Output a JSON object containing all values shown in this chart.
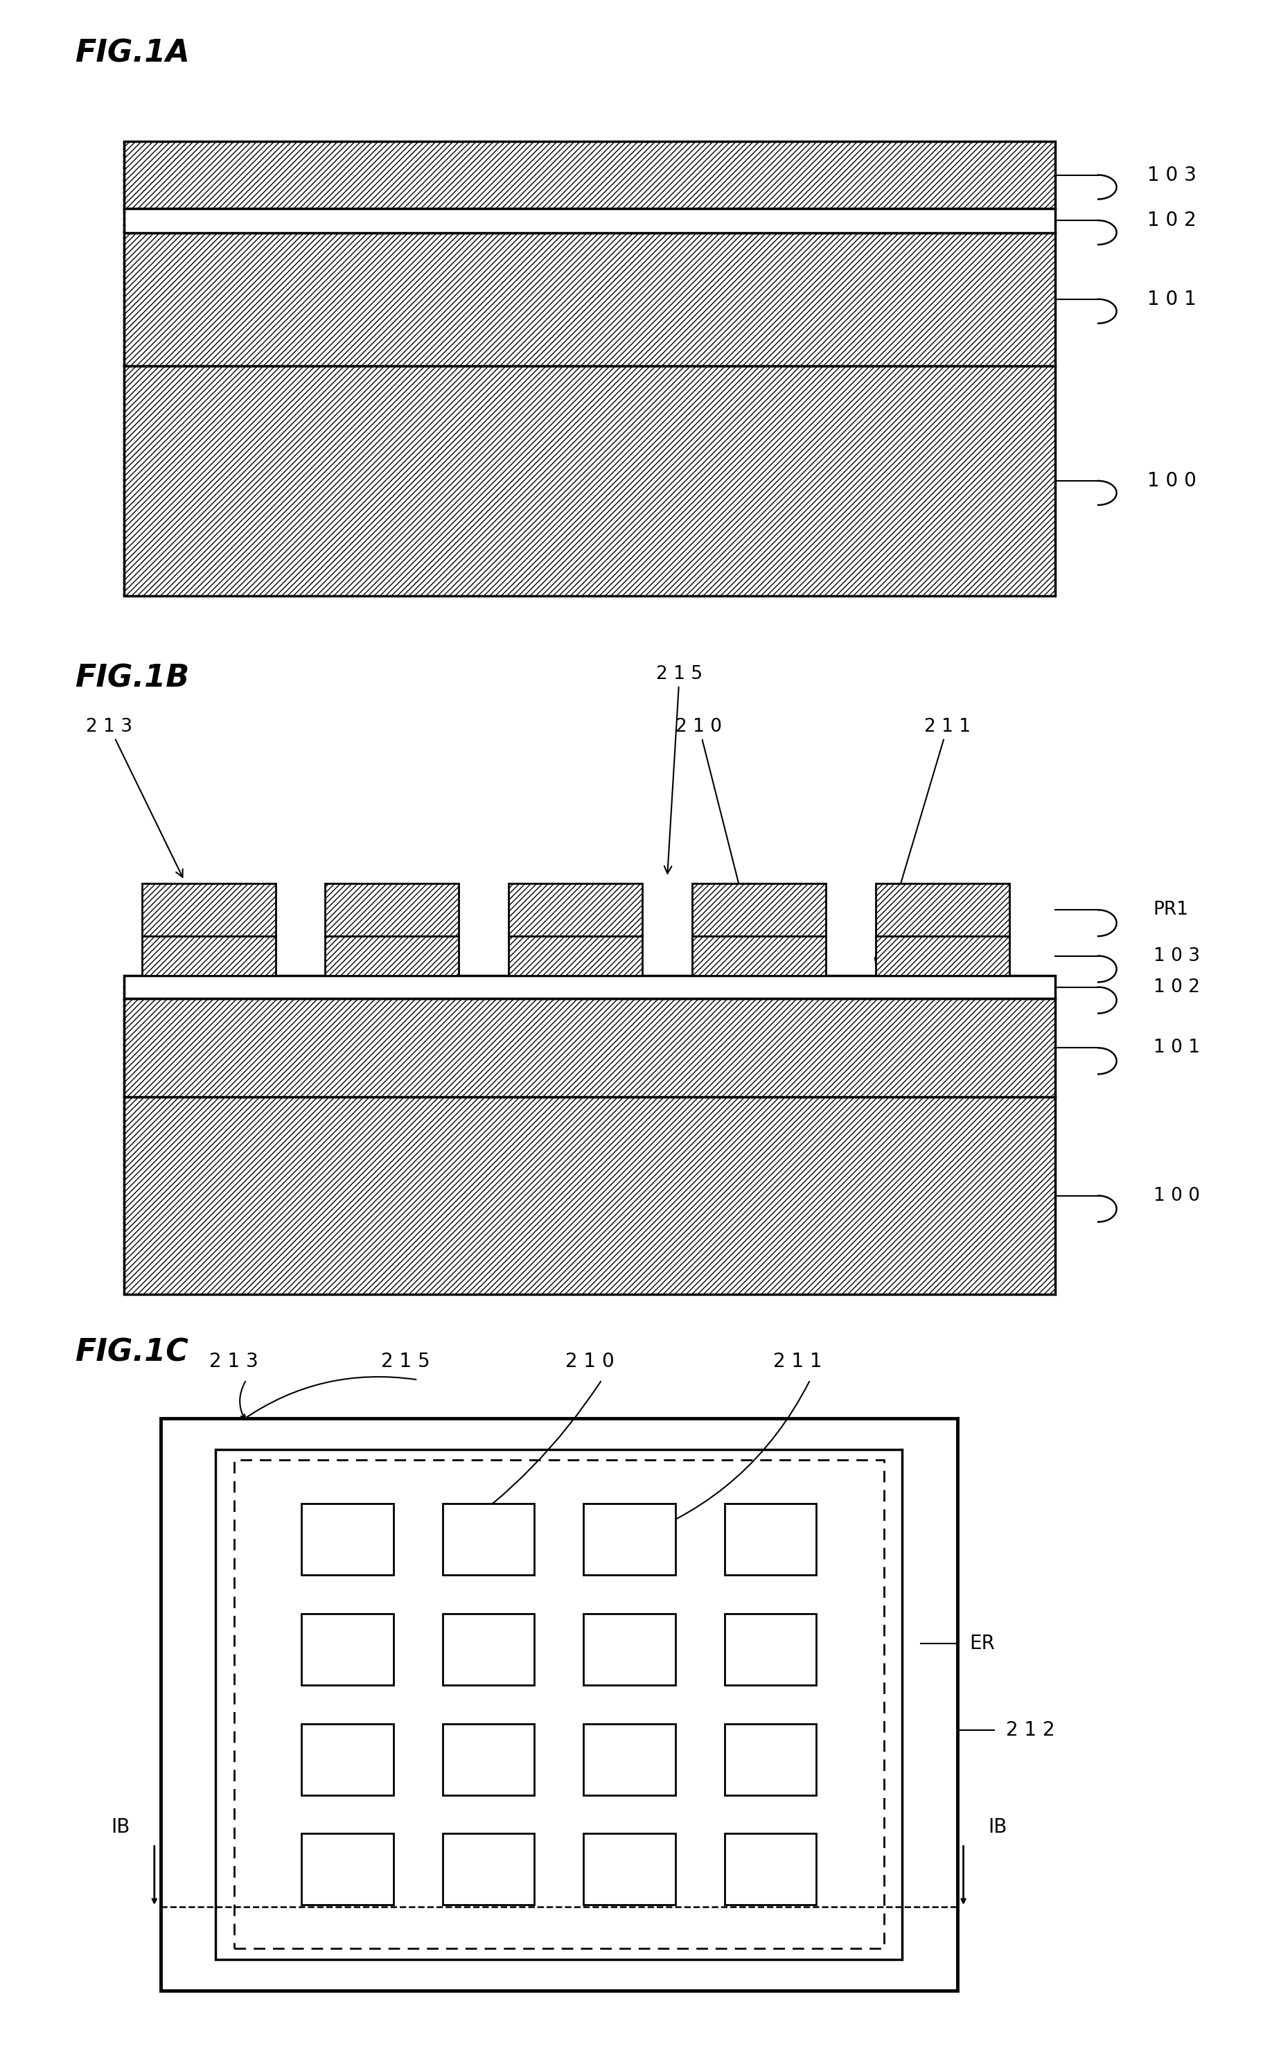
{
  "bg_color": "#ffffff",
  "fig_width": 18.24,
  "fig_height": 29.63,
  "fig1a_label": "FIG.1A",
  "fig1b_label": "FIG.1B",
  "fig1c_label": "FIG.1C",
  "label_103": "1 0 3",
  "label_102": "1 0 2",
  "label_101": "1 0 1",
  "label_100": "1 0 0",
  "label_213": "2 1 3",
  "label_215": "2 1 5",
  "label_210": "2 1 0",
  "label_211": "2 1 1",
  "label_PR1": "PR1",
  "label_ER": "ER",
  "label_212": "2 1 2",
  "label_IB": "IB"
}
